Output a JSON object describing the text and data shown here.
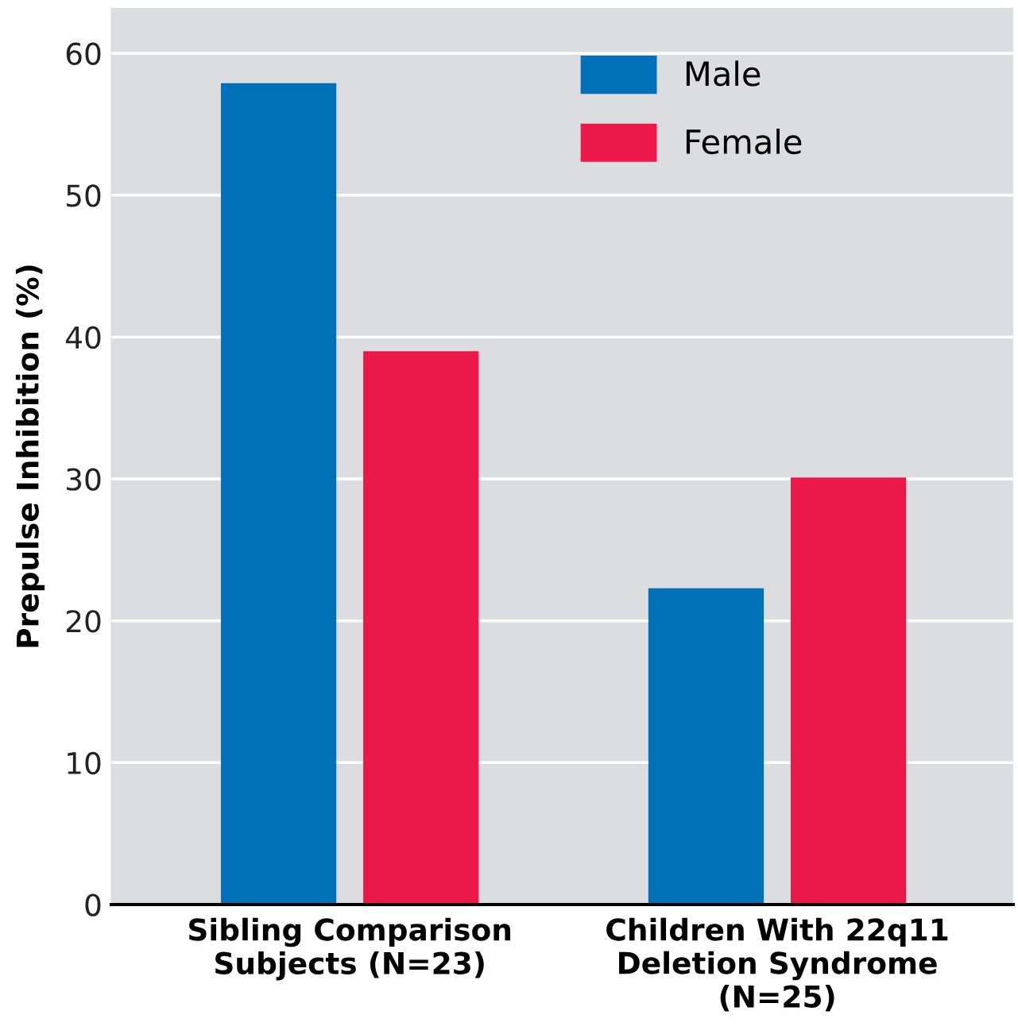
{
  "chart_data": {
    "type": "bar",
    "ylabel": "Prepulse Inhibition (%)",
    "categories": [
      "Sibling Comparison\nSubjects (N=23)",
      "Children With 22q11\nDeletion Syndrome\n(N=25)"
    ],
    "series": [
      {
        "name": "Male",
        "color": "#0070b8",
        "values": [
          57.9,
          22.3
        ]
      },
      {
        "name": "Female",
        "color": "#ec1848",
        "values": [
          39.0,
          30.1
        ]
      }
    ],
    "ylim": [
      0,
      63.2
    ],
    "yticks": [
      0,
      10,
      20,
      30,
      40,
      50,
      60
    ],
    "grid": "y",
    "legend": "top right"
  }
}
